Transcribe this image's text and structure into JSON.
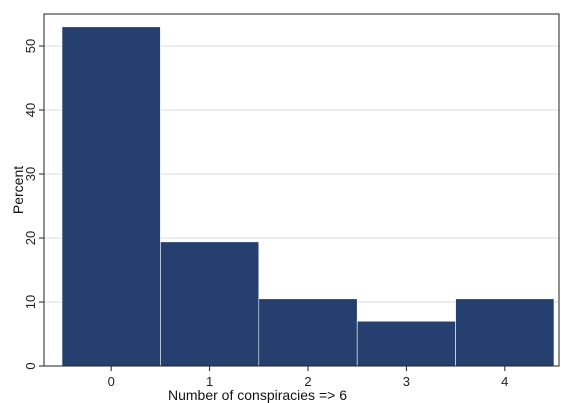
{
  "colors": {
    "bar": "#253f6e",
    "grid": "#dcdcdc",
    "axis": "#222222"
  },
  "chart_data": {
    "type": "bar",
    "title": "",
    "categories": [
      "0",
      "1",
      "2",
      "3",
      "4"
    ],
    "values": [
      53,
      19.4,
      10.5,
      7,
      10.5
    ],
    "xlabel": "Number of conspiracies => 6",
    "ylabel": "Percent",
    "ylim": [
      0,
      55
    ],
    "yticks": [
      0,
      10,
      20,
      30,
      40,
      50
    ],
    "grid": true,
    "legend": "none"
  }
}
